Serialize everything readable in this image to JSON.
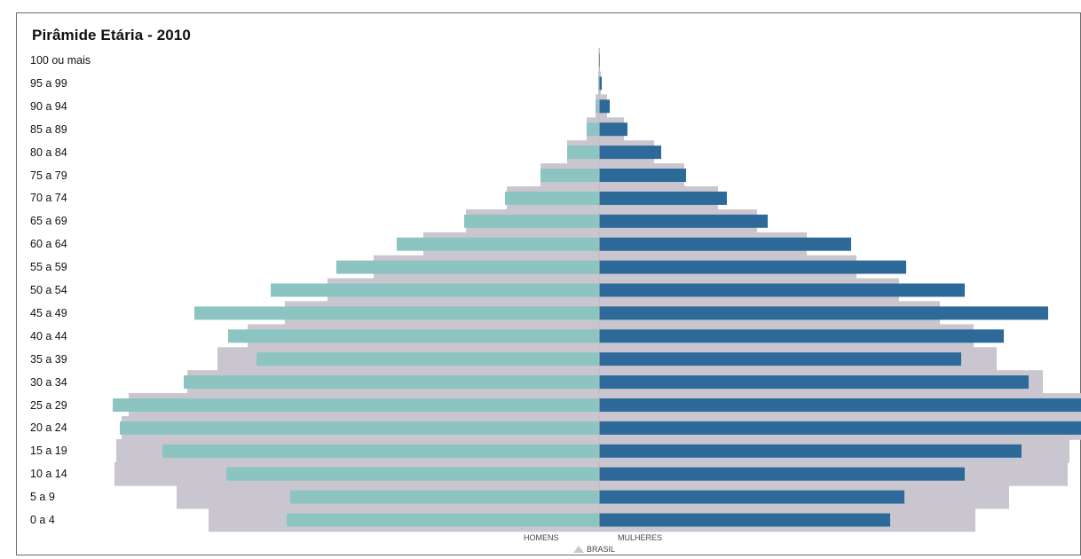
{
  "chart_data": {
    "type": "bar",
    "title": "Pirâmide Etária - 2010",
    "categories": [
      "0 a 4",
      "5 a 9",
      "10 a 14",
      "15 a 19",
      "20 a 24",
      "25 a 29",
      "30 a 34",
      "35 a 39",
      "40 a 44",
      "45 a 49",
      "50 a 54",
      "55 a 59",
      "60 a 64",
      "65 a 69",
      "70 a 74",
      "75 a 79",
      "80 a 84",
      "85 a 89",
      "90 a 94",
      "95 a 99",
      "100 ou mais"
    ],
    "series": [
      {
        "name": "HOMENS",
        "color": "#8cc4c2",
        "values": [
          352,
          348,
          420,
          492,
          540,
          548,
          468,
          386,
          418,
          456,
          370,
          296,
          228,
          152,
          106,
          66,
          36,
          14,
          4,
          1,
          0.4
        ]
      },
      {
        "name": "MULHERES",
        "color": "#2d6a99",
        "values": [
          328,
          344,
          412,
          476,
          546,
          546,
          484,
          408,
          456,
          506,
          412,
          346,
          284,
          190,
          144,
          98,
          70,
          32,
          12,
          3,
          1
        ]
      },
      {
        "name": "BRASIL",
        "color": "#c9c6cf",
        "values_men": [
          440,
          476,
          546,
          544,
          538,
          530,
          464,
          430,
          396,
          354,
          306,
          254,
          198,
          150,
          104,
          66,
          36,
          14,
          4,
          1,
          0.4
        ],
        "values_women": [
          424,
          462,
          528,
          530,
          544,
          544,
          500,
          448,
          422,
          384,
          338,
          290,
          234,
          178,
          134,
          96,
          62,
          28,
          9,
          2,
          1
        ]
      }
    ],
    "legend": {
      "men": "HOMENS",
      "women": "MULHERES",
      "reference": "BRASIL"
    },
    "xlim": [
      -550,
      550
    ],
    "grid": false,
    "legend_position": "bottom-center"
  }
}
